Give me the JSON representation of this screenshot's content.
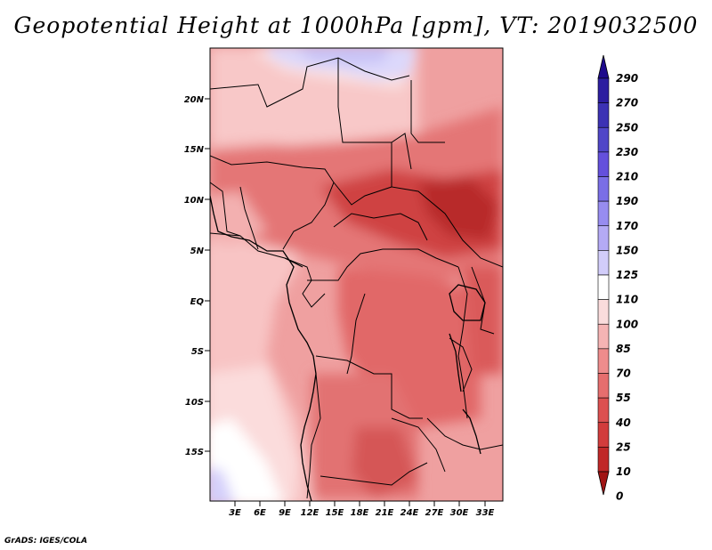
{
  "title": "Geopotential Height at 1000hPa [gpm], VT: 2019032500",
  "credit": "GrADS: IGES/COLA",
  "map": {
    "lat_labels": [
      "20N",
      "15N",
      "10N",
      "5N",
      "EQ",
      "5S",
      "10S",
      "15S"
    ],
    "lon_labels": [
      "3E",
      "6E",
      "9E",
      "12E",
      "15E",
      "18E",
      "21E",
      "24E",
      "27E",
      "30E",
      "33E"
    ]
  },
  "colorbar": {
    "levels": [
      "290",
      "270",
      "250",
      "230",
      "210",
      "190",
      "170",
      "150",
      "125",
      "110",
      "100",
      "85",
      "70",
      "55",
      "40",
      "25",
      "10",
      "0"
    ],
    "colors": [
      "#1e0a8c",
      "#2d1ea0",
      "#3c32b4",
      "#5046c8",
      "#6450dc",
      "#7a6ee6",
      "#978cf0",
      "#b4aaf5",
      "#d2cdfa",
      "#ffffff",
      "#fadcdc",
      "#f5b4b4",
      "#ee8c8c",
      "#e66e6e",
      "#dc5050",
      "#d23c3c",
      "#c02828",
      "#a01414"
    ]
  }
}
